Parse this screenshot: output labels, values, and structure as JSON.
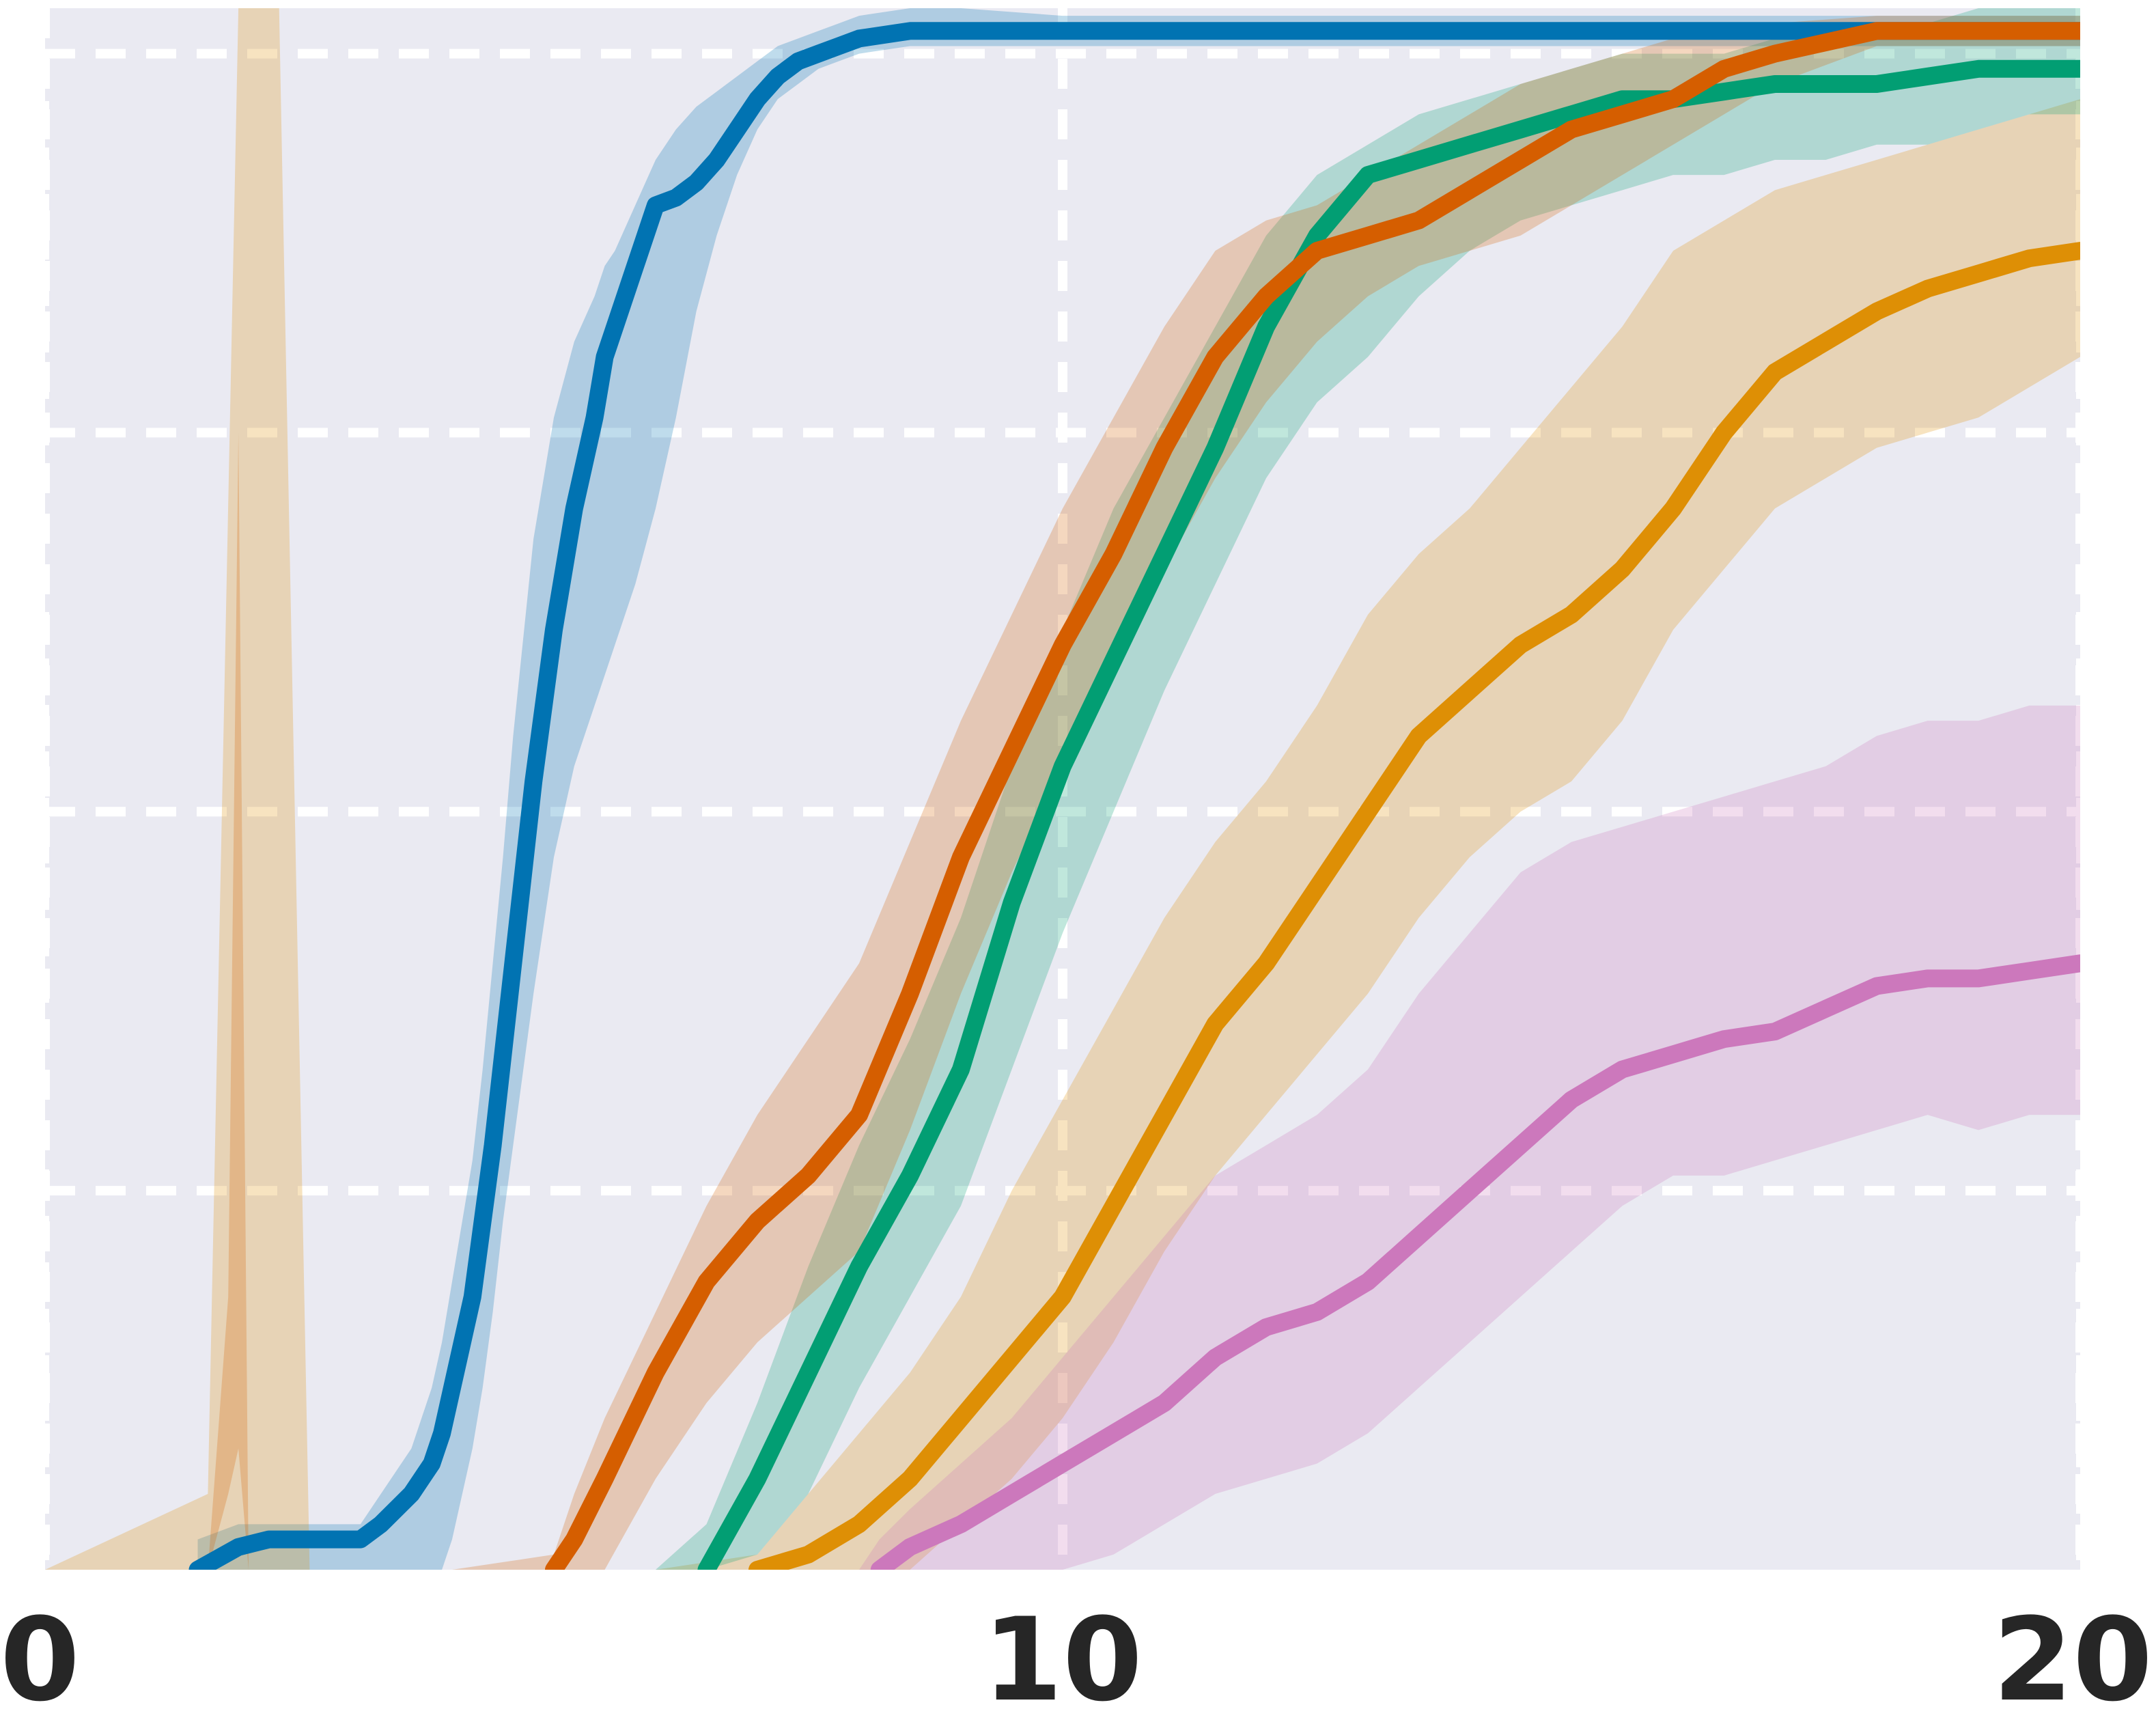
{
  "chart_data": {
    "type": "line",
    "title": "",
    "xlabel": "",
    "ylabel": "",
    "xlim": [
      0,
      20
    ],
    "ylim": [
      0,
      1.03
    ],
    "x_ticks": [
      "0",
      "10",
      "20"
    ],
    "y_ticks_shown": false,
    "grid": true,
    "background": "#EAEAF2",
    "grid_color": "#ffffff",
    "legend": "none",
    "series": [
      {
        "color": "#0173B2",
        "x": [
          0.0,
          1.5,
          1.9,
          2.2,
          2.5,
          3.1,
          3.3,
          3.6,
          3.8,
          3.9,
          4.0,
          4.1,
          4.2,
          4.3,
          4.4,
          4.5,
          4.6,
          4.8,
          5.0,
          5.2,
          5.4,
          5.5,
          5.6,
          5.8,
          6.0,
          6.2,
          6.4,
          6.6,
          6.8,
          7.0,
          7.2,
          7.4,
          7.6,
          7.8,
          8.0,
          8.5,
          9.0,
          10.0,
          11.0,
          12.0,
          13.0,
          14.0,
          15.0,
          16.0,
          17.0,
          18.0,
          19.0,
          20.0
        ],
        "y": [
          null,
          0.0,
          0.015,
          0.02,
          0.02,
          0.02,
          0.03,
          0.05,
          0.07,
          0.09,
          0.12,
          0.15,
          0.18,
          0.23,
          0.28,
          0.34,
          0.4,
          0.52,
          0.62,
          0.7,
          0.76,
          0.8,
          0.82,
          0.86,
          0.9,
          0.905,
          0.915,
          0.93,
          0.95,
          0.97,
          0.985,
          0.995,
          1.0,
          1.005,
          1.01,
          1.015,
          1.015,
          1.015,
          1.015,
          1.015,
          1.015,
          1.015,
          1.015,
          1.015,
          1.015,
          1.015,
          1.015,
          1.015
        ],
        "lower": [
          null,
          0.0,
          0.0,
          0.0,
          0.0,
          0.0,
          0.0,
          0.0,
          0.0,
          0.0,
          0.02,
          0.05,
          0.08,
          0.12,
          0.17,
          0.23,
          0.28,
          0.38,
          0.47,
          0.53,
          0.57,
          0.59,
          0.61,
          0.65,
          0.7,
          0.76,
          0.83,
          0.88,
          0.92,
          0.95,
          0.97,
          0.98,
          0.99,
          0.995,
          1.0,
          1.005,
          1.005,
          1.005,
          1.005,
          1.005,
          1.005,
          1.005,
          1.005,
          1.005,
          1.005,
          1.005,
          1.005,
          1.005
        ],
        "upper": [
          null,
          0.02,
          0.03,
          0.03,
          0.03,
          0.03,
          0.05,
          0.08,
          0.12,
          0.15,
          0.19,
          0.23,
          0.27,
          0.33,
          0.4,
          0.47,
          0.55,
          0.68,
          0.76,
          0.81,
          0.84,
          0.86,
          0.87,
          0.9,
          0.93,
          0.95,
          0.965,
          0.975,
          0.985,
          0.995,
          1.005,
          1.01,
          1.015,
          1.02,
          1.025,
          1.03,
          1.03,
          1.025,
          1.025,
          1.025,
          1.025,
          1.025,
          1.025,
          1.025,
          1.025,
          1.025,
          1.025,
          1.025
        ]
      },
      {
        "color": "#DE8F05",
        "x": [
          0.0,
          1.6,
          1.9,
          2.1,
          2.3,
          2.6,
          3.0,
          4.0,
          5.0,
          6.0,
          7.0,
          7.5,
          8.0,
          8.5,
          9.0,
          9.5,
          10.0,
          10.5,
          11.0,
          11.5,
          12.0,
          12.5,
          13.0,
          13.5,
          14.0,
          14.5,
          15.0,
          15.5,
          16.0,
          16.5,
          17.0,
          17.5,
          18.0,
          18.5,
          19.0,
          19.5,
          20.0
        ],
        "y": [
          null,
          null,
          null,
          null,
          null,
          null,
          null,
          null,
          null,
          null,
          0.0,
          0.01,
          0.03,
          0.06,
          0.1,
          0.14,
          0.18,
          0.24,
          0.3,
          0.36,
          0.4,
          0.45,
          0.5,
          0.55,
          0.58,
          0.61,
          0.63,
          0.66,
          0.7,
          0.75,
          0.79,
          0.81,
          0.83,
          0.845,
          0.855,
          0.865,
          0.87
        ],
        "lower": [
          0.0,
          0.0,
          0.0,
          0.0,
          0.0,
          0.0,
          0.0,
          0.0,
          0.0,
          0.0,
          0.0,
          0.0,
          0.0,
          0.0,
          0.03,
          0.06,
          0.1,
          0.15,
          0.21,
          0.26,
          0.3,
          0.34,
          0.38,
          0.43,
          0.47,
          0.5,
          0.52,
          0.56,
          0.62,
          0.66,
          0.7,
          0.72,
          0.74,
          0.75,
          0.76,
          0.78,
          0.8
        ],
        "upper": [
          0.0,
          0.05,
          1.03,
          1.03,
          1.03,
          0.0,
          0.0,
          0.0,
          0.0,
          0.0,
          0.01,
          0.05,
          0.09,
          0.13,
          0.18,
          0.25,
          0.31,
          0.37,
          0.43,
          0.48,
          0.52,
          0.57,
          0.63,
          0.67,
          0.7,
          0.74,
          0.78,
          0.82,
          0.87,
          0.89,
          0.91,
          0.92,
          0.93,
          0.94,
          0.95,
          0.96,
          0.97
        ]
      },
      {
        "color": "#029E73",
        "x": [
          0.0,
          4.0,
          5.0,
          6.0,
          6.5,
          7.0,
          7.5,
          8.0,
          8.5,
          9.0,
          9.5,
          10.0,
          10.5,
          11.0,
          11.5,
          12.0,
          12.5,
          13.0,
          13.5,
          14.0,
          14.5,
          15.0,
          15.5,
          16.0,
          16.5,
          17.0,
          17.5,
          18.0,
          18.5,
          19.0,
          19.5,
          20.0
        ],
        "y": [
          null,
          null,
          null,
          null,
          0.0,
          0.06,
          0.13,
          0.2,
          0.26,
          0.33,
          0.44,
          0.53,
          0.6,
          0.67,
          0.74,
          0.82,
          0.88,
          0.92,
          0.93,
          0.94,
          0.95,
          0.96,
          0.97,
          0.97,
          0.975,
          0.98,
          0.98,
          0.98,
          0.985,
          0.99,
          0.99,
          0.99
        ],
        "lower": [
          0.0,
          0.0,
          0.0,
          0.0,
          0.0,
          0.01,
          0.05,
          0.12,
          0.18,
          0.24,
          0.33,
          0.42,
          0.5,
          0.58,
          0.65,
          0.72,
          0.77,
          0.8,
          0.84,
          0.87,
          0.89,
          0.9,
          0.91,
          0.92,
          0.92,
          0.93,
          0.93,
          0.94,
          0.94,
          0.95,
          0.96,
          0.96
        ],
        "upper": [
          0.0,
          0.0,
          0.0,
          0.0,
          0.03,
          0.11,
          0.2,
          0.28,
          0.35,
          0.43,
          0.53,
          0.62,
          0.7,
          0.76,
          0.82,
          0.88,
          0.92,
          0.94,
          0.96,
          0.97,
          0.98,
          0.99,
          1.0,
          1.0,
          1.0,
          1.01,
          1.01,
          1.02,
          1.02,
          1.03,
          1.03,
          1.03
        ]
      },
      {
        "color": "#D55E00",
        "x": [
          0.0,
          1.6,
          1.8,
          1.9,
          2.0,
          2.2,
          3.0,
          4.0,
          5.0,
          5.2,
          5.5,
          6.0,
          6.5,
          7.0,
          7.5,
          8.0,
          8.5,
          9.0,
          9.5,
          10.0,
          10.5,
          11.0,
          11.5,
          12.0,
          12.5,
          13.0,
          13.5,
          14.0,
          14.5,
          15.0,
          15.5,
          16.0,
          16.5,
          17.0,
          18.0,
          19.0,
          20.0
        ],
        "y": [
          null,
          null,
          null,
          null,
          null,
          null,
          null,
          null,
          0.0,
          0.02,
          0.06,
          0.13,
          0.19,
          0.23,
          0.26,
          0.3,
          0.38,
          0.47,
          0.54,
          0.61,
          0.67,
          0.74,
          0.8,
          0.84,
          0.87,
          0.88,
          0.89,
          0.91,
          0.93,
          0.95,
          0.96,
          0.97,
          0.99,
          1.0,
          1.015,
          1.015,
          1.015
        ],
        "lower": [
          0.0,
          0.0,
          0.05,
          0.08,
          0.0,
          0.0,
          0.0,
          0.0,
          0.0,
          0.0,
          0.0,
          0.06,
          0.11,
          0.15,
          0.18,
          0.21,
          0.29,
          0.38,
          0.46,
          0.53,
          0.6,
          0.66,
          0.72,
          0.77,
          0.81,
          0.84,
          0.86,
          0.87,
          0.88,
          0.9,
          0.92,
          0.94,
          0.96,
          0.98,
          1.005,
          1.005,
          1.005
        ],
        "upper": [
          0.0,
          0.0,
          0.18,
          0.75,
          0.0,
          0.0,
          0.0,
          0.0,
          0.01,
          0.05,
          0.1,
          0.17,
          0.24,
          0.3,
          0.35,
          0.4,
          0.48,
          0.56,
          0.63,
          0.7,
          0.76,
          0.82,
          0.87,
          0.89,
          0.9,
          0.92,
          0.94,
          0.96,
          0.98,
          0.99,
          1.0,
          1.01,
          1.01,
          1.02,
          1.025,
          1.025,
          1.025
        ]
      },
      {
        "color": "#CC78BC",
        "x": [
          0.0,
          8.0,
          8.2,
          8.5,
          9.0,
          9.5,
          10.0,
          10.5,
          11.0,
          11.5,
          12.0,
          12.5,
          13.0,
          13.5,
          14.0,
          14.5,
          15.0,
          15.5,
          16.0,
          16.5,
          17.0,
          17.5,
          18.0,
          18.5,
          19.0,
          19.5,
          20.0
        ],
        "y": [
          null,
          null,
          0.0,
          0.015,
          0.03,
          0.05,
          0.07,
          0.09,
          0.11,
          0.14,
          0.16,
          0.17,
          0.19,
          0.22,
          0.25,
          0.28,
          0.31,
          0.33,
          0.34,
          0.35,
          0.355,
          0.37,
          0.385,
          0.39,
          0.39,
          0.395,
          0.4
        ],
        "lower": [
          0.0,
          0.0,
          0.0,
          0.0,
          0.0,
          0.0,
          0.0,
          0.01,
          0.03,
          0.05,
          0.06,
          0.07,
          0.09,
          0.12,
          0.15,
          0.18,
          0.21,
          0.24,
          0.26,
          0.26,
          0.27,
          0.28,
          0.29,
          0.3,
          0.29,
          0.3,
          0.3
        ],
        "upper": [
          0.0,
          0.0,
          0.02,
          0.04,
          0.07,
          0.1,
          0.14,
          0.18,
          0.22,
          0.26,
          0.28,
          0.3,
          0.33,
          0.38,
          0.42,
          0.46,
          0.48,
          0.49,
          0.5,
          0.51,
          0.52,
          0.53,
          0.55,
          0.56,
          0.56,
          0.57,
          0.57
        ]
      }
    ]
  }
}
